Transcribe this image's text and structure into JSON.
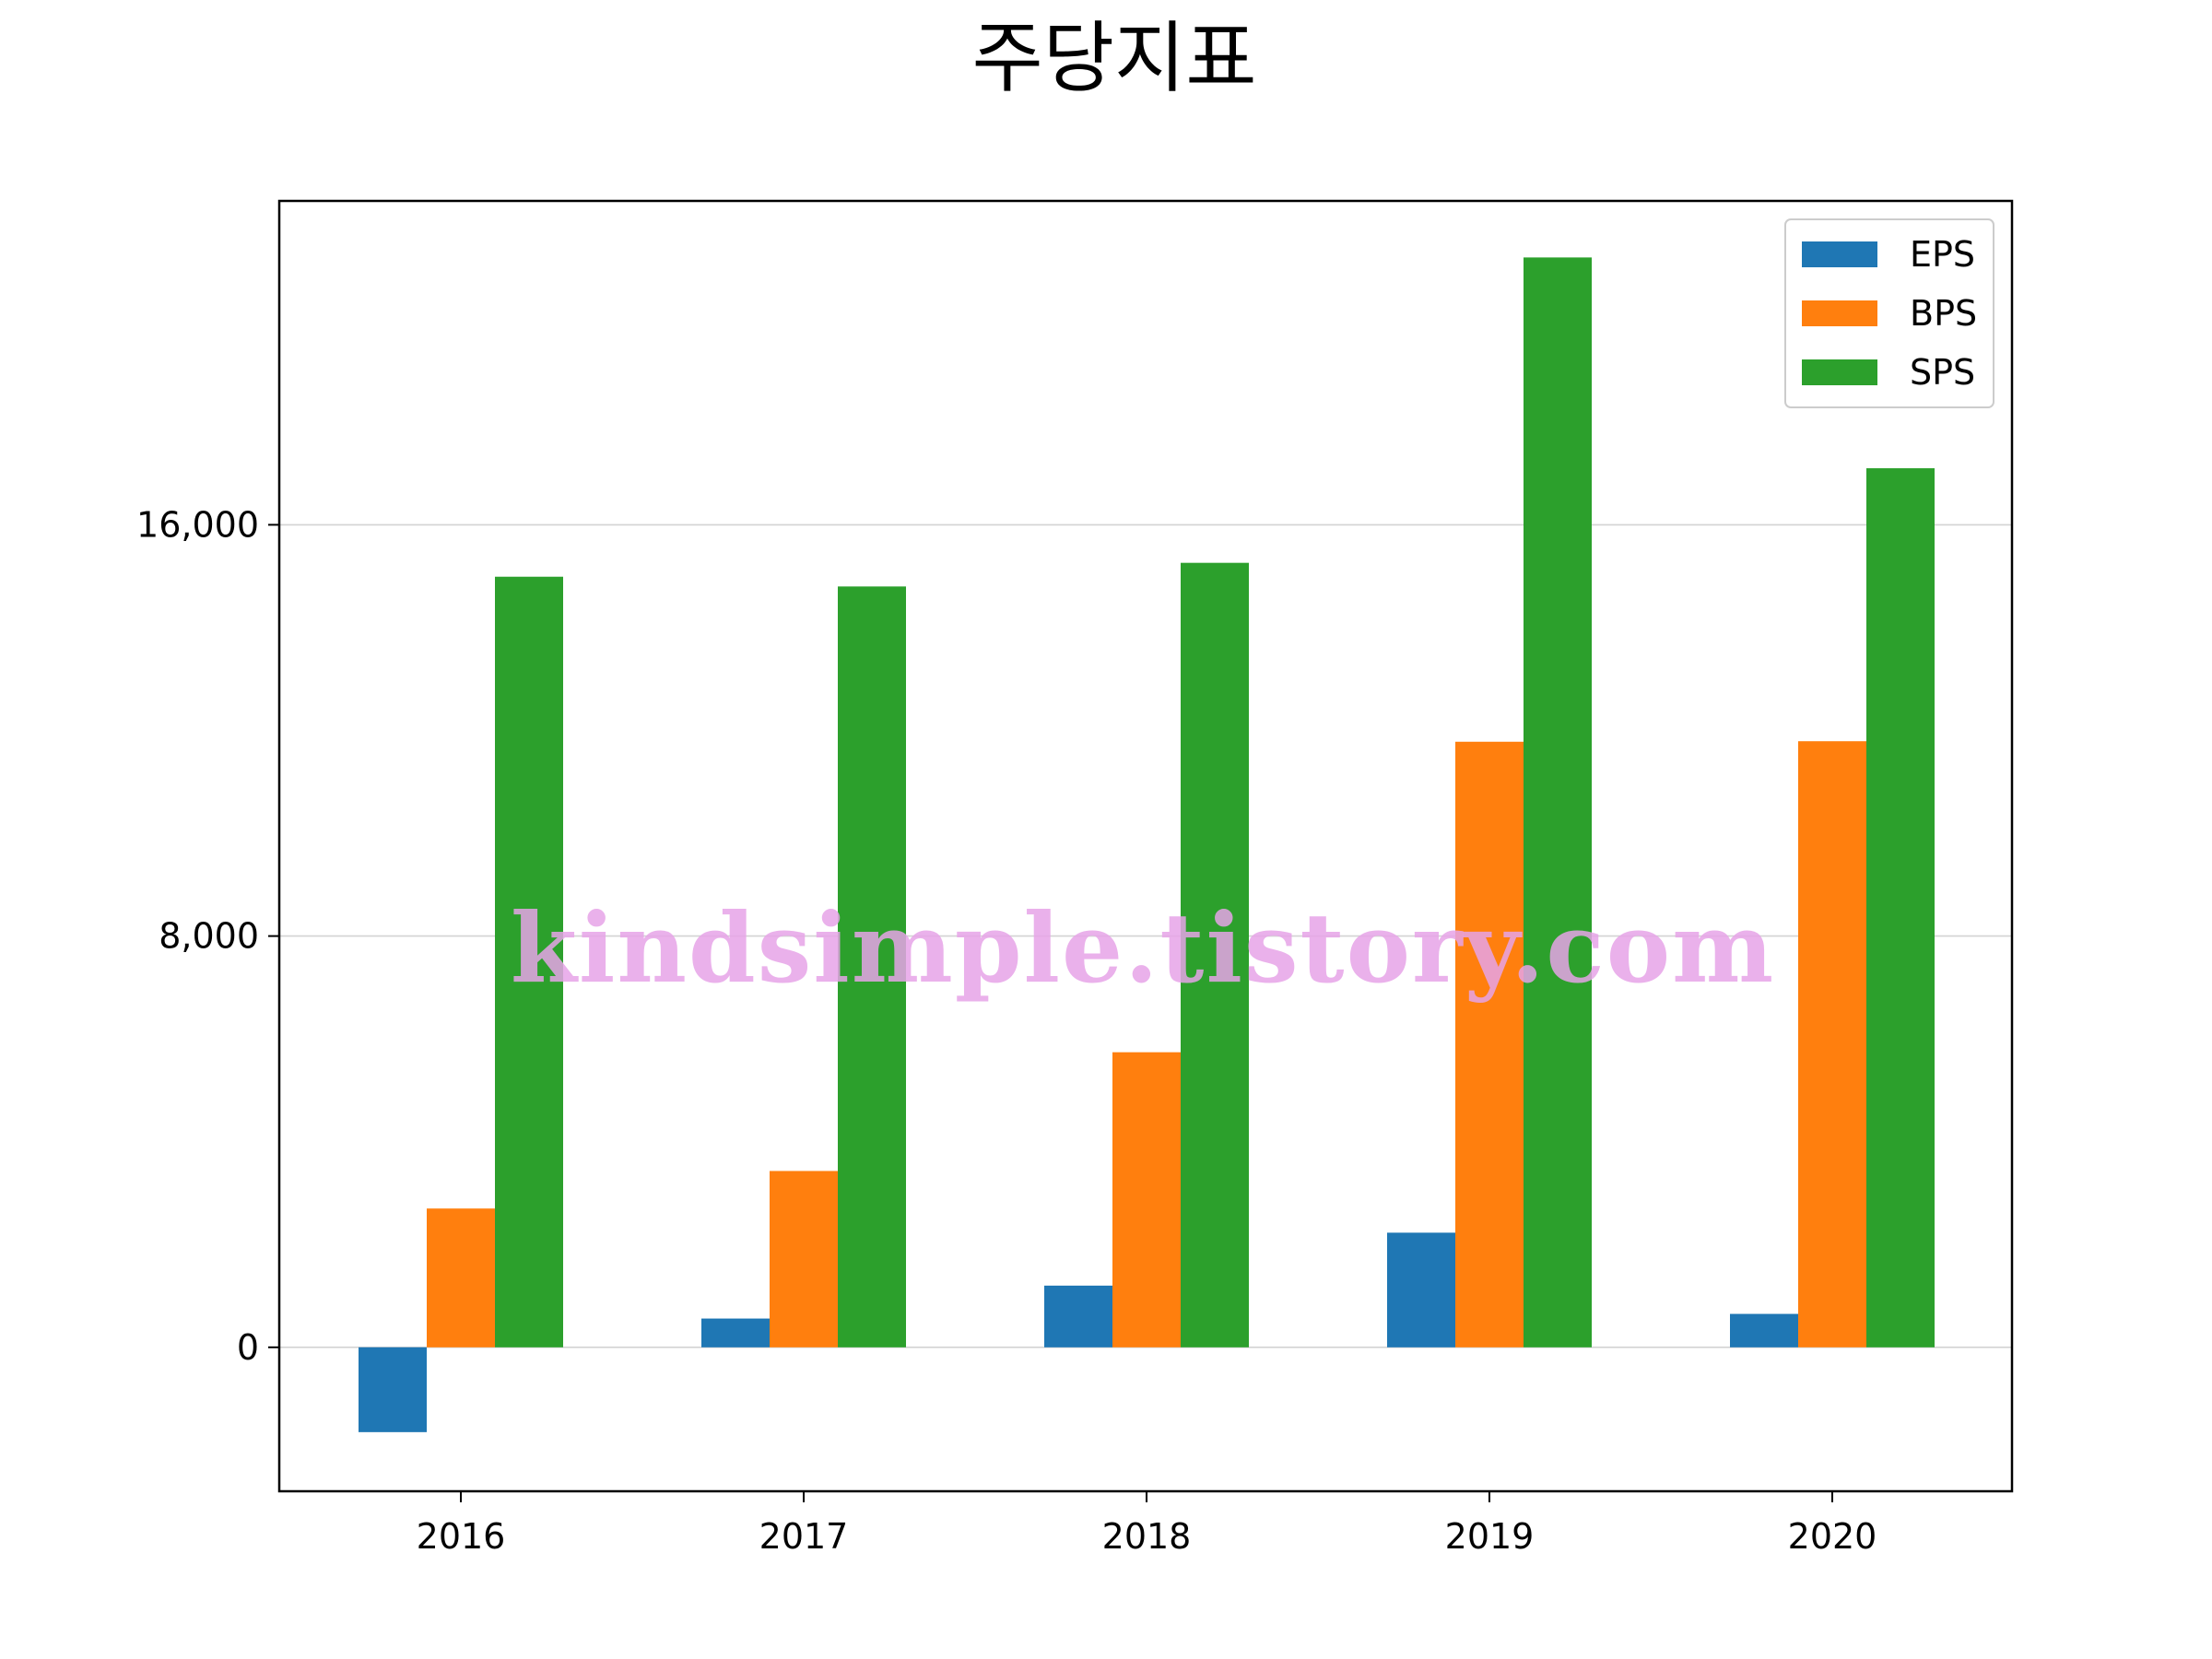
{
  "chart_data": {
    "type": "bar",
    "title": "주당지표",
    "xlabel": "",
    "ylabel": "",
    "categories": [
      "2016",
      "2017",
      "2018",
      "2019",
      "2020"
    ],
    "series": [
      {
        "name": "EPS",
        "color": "#1f77b4",
        "values": [
          -1650,
          560,
          1200,
          2230,
          650
        ]
      },
      {
        "name": "BPS",
        "color": "#ff7f0e",
        "values": [
          2700,
          3430,
          5740,
          11780,
          11790
        ]
      },
      {
        "name": "SPS",
        "color": "#2ca02c",
        "values": [
          14990,
          14800,
          15260,
          21200,
          17100
        ]
      }
    ],
    "ylim": [
      -2800,
      22300
    ],
    "yticks": [
      0,
      8000,
      16000
    ],
    "ytick_labels": [
      "0",
      "8,000",
      "16,000"
    ],
    "grid": "y",
    "grid_color": "#d3d3d3",
    "legend_position": "top-right"
  },
  "watermark": {
    "text": "kindsimple.tistory.com",
    "color": "#e6a3e8"
  }
}
